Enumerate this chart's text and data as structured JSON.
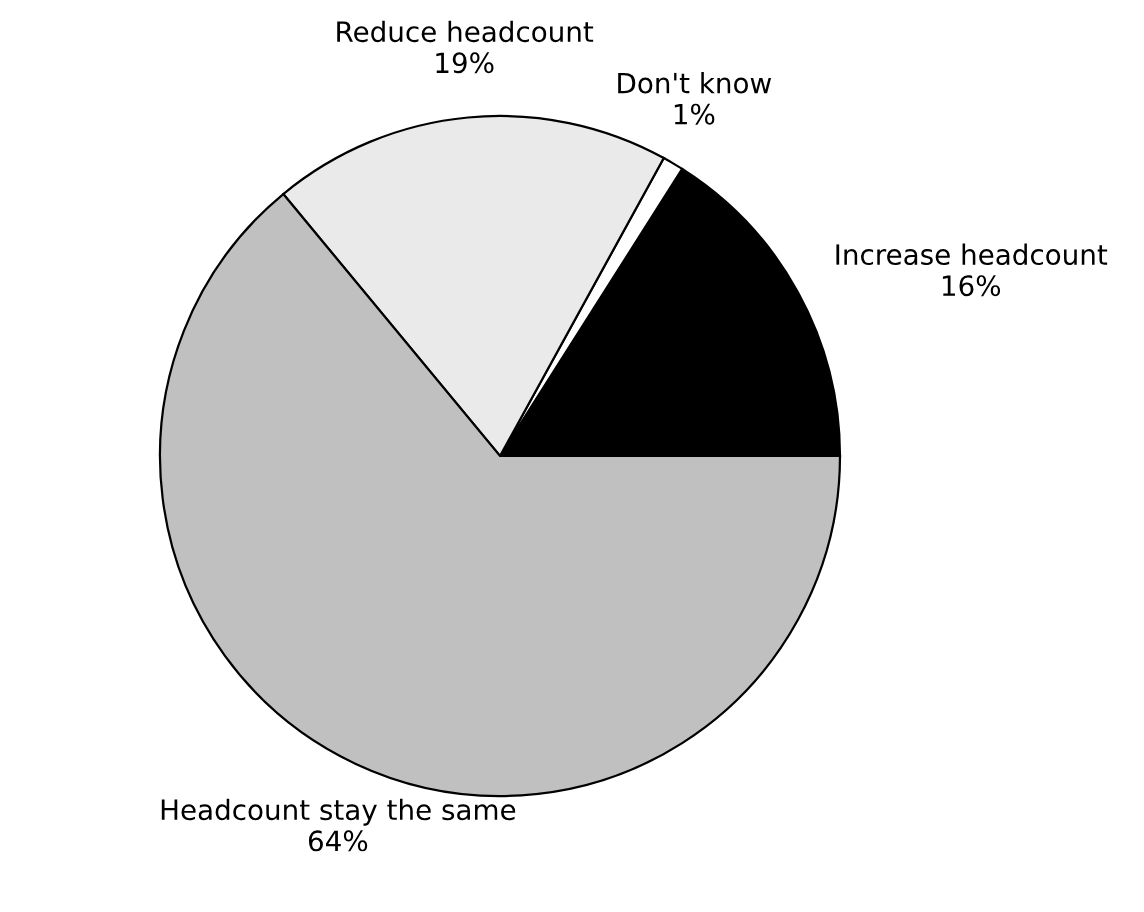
{
  "chart_data": {
    "type": "pie",
    "categories": [
      "Increase headcount",
      "Don't know",
      "Reduce headcount",
      "Headcount stay the same"
    ],
    "values": [
      16,
      1,
      19,
      64
    ],
    "colors": [
      "#000000",
      "#ffffff",
      "#eaeaea",
      "#c0c0c0"
    ],
    "value_labels": [
      "16%",
      "1%",
      "19%",
      "64%"
    ]
  }
}
